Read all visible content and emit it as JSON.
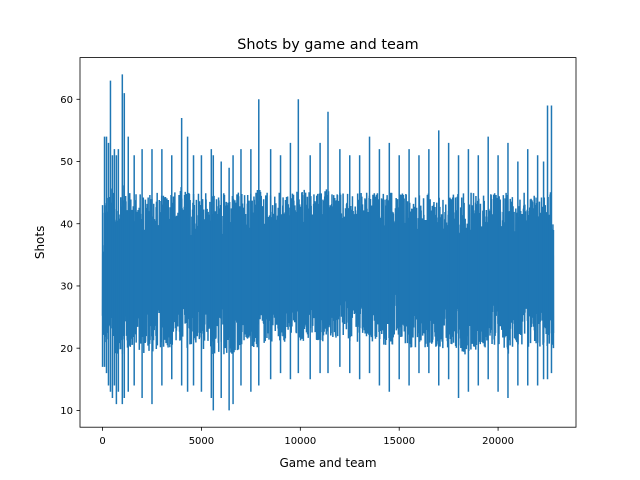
{
  "chart_data": {
    "type": "line",
    "title": "Shots by game and team",
    "xlabel": "Game and team",
    "ylabel": "Shots",
    "xlim": [
      -1140,
      23940
    ],
    "ylim": [
      7.3,
      66.7
    ],
    "x_ticks": [
      0,
      5000,
      10000,
      15000,
      20000
    ],
    "x_tick_labels": [
      "0",
      "5000",
      "10000",
      "15000",
      "20000"
    ],
    "y_ticks": [
      10,
      20,
      30,
      40,
      50,
      60
    ],
    "y_tick_labels": [
      "10",
      "20",
      "30",
      "40",
      "50",
      "60"
    ],
    "grid": false,
    "legend": "none",
    "line_color": "#1f77b4",
    "n_points": 22800,
    "series": [
      {
        "x": [
          0,
          100,
          200,
          300,
          400,
          500,
          600,
          700,
          800,
          1000,
          1100,
          1300,
          1600,
          2000,
          2500,
          3000,
          3500,
          4000,
          4300,
          4600,
          5000,
          5500,
          5600,
          6000,
          6400,
          6600,
          7000,
          7500,
          7900,
          8500,
          9000,
          9500,
          9900,
          10500,
          11000,
          11400,
          12000,
          12500,
          13000,
          13500,
          14000,
          14500,
          15000,
          15500,
          16000,
          16500,
          17000,
          17500,
          18000,
          18500,
          19000,
          19500,
          20000,
          20500,
          21000,
          21500,
          22000,
          22300,
          22500,
          22700,
          22800
        ],
        "min": [
          17,
          17,
          16,
          14,
          13,
          12,
          14,
          11,
          13,
          11,
          12,
          13,
          14,
          12,
          11,
          14,
          15,
          14,
          13,
          14,
          13,
          12,
          10,
          12,
          10,
          11,
          14,
          13,
          14,
          15,
          16,
          15,
          16,
          15,
          16,
          16,
          17,
          16,
          15,
          16,
          14,
          13,
          15,
          14,
          16,
          16,
          14,
          15,
          12,
          13,
          14,
          15,
          13,
          12,
          14,
          14,
          14,
          15,
          15,
          16,
          20
        ],
        "max": [
          43,
          54,
          54,
          53,
          63,
          51,
          52,
          51,
          52,
          64,
          61,
          54,
          51,
          52,
          52,
          52,
          51,
          57,
          54,
          51,
          51,
          52,
          51,
          50,
          49,
          51,
          52,
          52,
          60,
          52,
          51,
          53,
          60,
          51,
          53,
          58,
          52,
          51,
          51,
          54,
          52,
          53,
          51,
          52,
          51,
          52,
          55,
          53,
          51,
          52,
          51,
          54,
          51,
          53,
          50,
          52,
          51,
          50,
          59,
          59,
          39
        ],
        "p10": [
          22,
          20,
          20,
          20,
          19,
          20,
          19,
          19,
          19,
          19,
          19,
          19,
          20,
          19,
          19,
          20,
          20,
          20,
          20,
          20,
          20,
          19,
          18,
          19,
          19,
          19,
          20,
          20,
          20,
          21,
          21,
          21,
          21,
          21,
          21,
          21,
          21,
          21,
          21,
          21,
          20,
          20,
          21,
          20,
          20,
          20,
          20,
          20,
          19,
          19,
          20,
          20,
          20,
          19,
          20,
          20,
          20,
          20,
          20,
          20,
          20
        ],
        "p90": [
          36,
          45,
          45,
          46,
          47,
          45,
          45,
          45,
          46,
          47,
          46,
          45,
          45,
          45,
          45,
          45,
          45,
          46,
          45,
          45,
          45,
          45,
          45,
          45,
          45,
          45,
          45,
          45,
          46,
          45,
          45,
          45,
          46,
          45,
          45,
          46,
          45,
          45,
          45,
          45,
          45,
          45,
          45,
          45,
          45,
          45,
          45,
          45,
          45,
          45,
          45,
          45,
          45,
          45,
          45,
          45,
          45,
          45,
          46,
          46,
          39
        ]
      }
    ]
  }
}
